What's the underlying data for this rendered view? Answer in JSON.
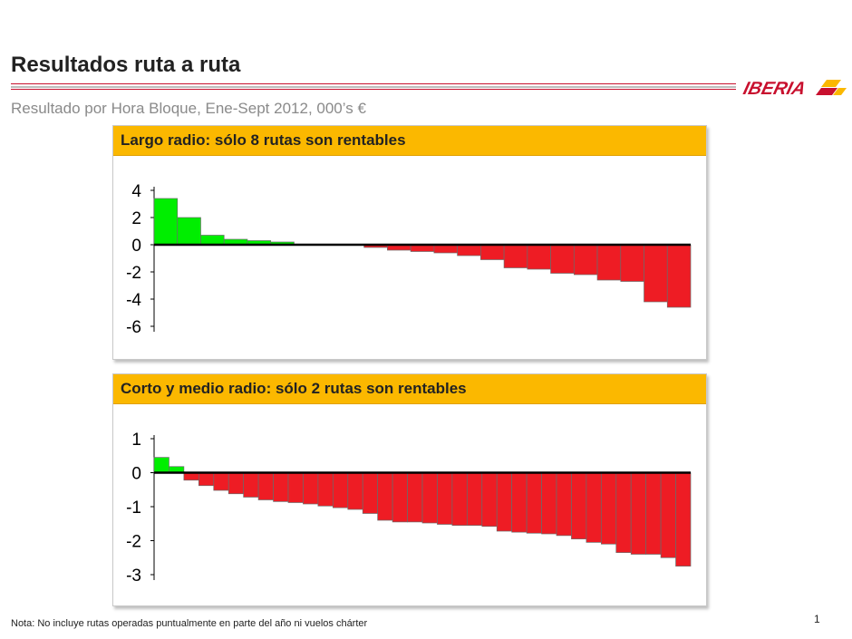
{
  "header": {
    "title": "Resultados ruta a ruta",
    "subtitle": "Resultado por Hora Bloque, Ene-Sept 2012, 000’s €",
    "logo_text": "IBERIA"
  },
  "colors": {
    "accent": "#fbb800",
    "positive": "#00ee00",
    "negative": "#ee1c24",
    "brand_red": "#c8102e"
  },
  "chart_data": [
    {
      "type": "bar",
      "title": "Largo radio: sólo 8 rutas son rentables",
      "xlabel": "",
      "ylabel": "",
      "ylim": [
        -6,
        4
      ],
      "yticks": [
        "4",
        "2",
        "0",
        "-2",
        "-4",
        "-6"
      ],
      "values": [
        3.4,
        2.0,
        0.7,
        0.4,
        0.3,
        0.2,
        0,
        0,
        0,
        -0.2,
        -0.4,
        -0.5,
        -0.6,
        -0.8,
        -1.1,
        -1.7,
        -1.8,
        -2.1,
        -2.2,
        -2.6,
        -2.7,
        -4.2,
        -4.6
      ]
    },
    {
      "type": "bar",
      "title": "Corto y medio radio: sólo 2 rutas son rentables",
      "xlabel": "",
      "ylabel": "",
      "ylim": [
        -3,
        1
      ],
      "yticks": [
        "1",
        "0",
        "-1",
        "-2",
        "-3"
      ],
      "values": [
        0.45,
        0.18,
        -0.22,
        -0.38,
        -0.52,
        -0.62,
        -0.72,
        -0.8,
        -0.85,
        -0.88,
        -0.92,
        -0.98,
        -1.03,
        -1.08,
        -1.2,
        -1.4,
        -1.45,
        -1.45,
        -1.48,
        -1.52,
        -1.55,
        -1.55,
        -1.58,
        -1.72,
        -1.75,
        -1.78,
        -1.8,
        -1.85,
        -1.95,
        -2.05,
        -2.1,
        -2.35,
        -2.4,
        -2.4,
        -2.5,
        -2.75
      ]
    }
  ],
  "footer": {
    "note": "Nota: No incluye rutas operadas puntualmente en parte del año ni vuelos chárter",
    "page_number": "1"
  }
}
